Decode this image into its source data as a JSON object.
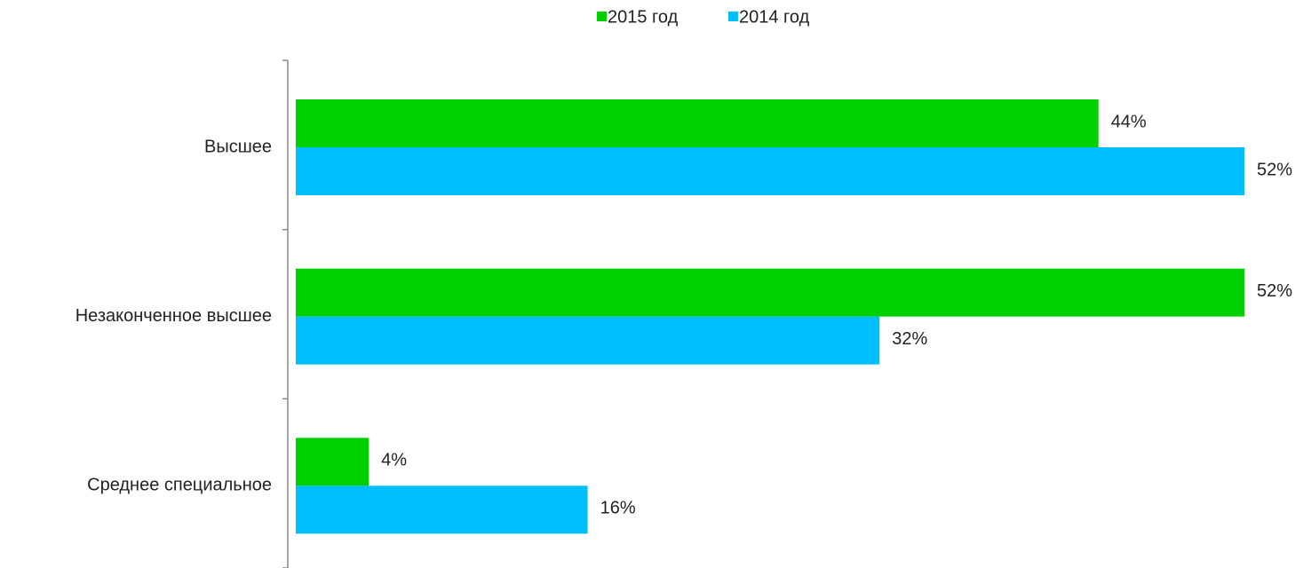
{
  "chart_data": {
    "type": "bar",
    "orientation": "horizontal",
    "categories": [
      "Высшее",
      "Незаконченное высшее",
      "Среднее специальное"
    ],
    "series": [
      {
        "name": "2015 год",
        "color": "#00d000",
        "values": [
          44,
          52,
          4
        ],
        "value_labels": [
          "44%",
          "52%",
          "4%"
        ]
      },
      {
        "name": "2014 год",
        "color": "#00bfff",
        "values": [
          52,
          32,
          16
        ],
        "value_labels": [
          "52%",
          "32%",
          "16%"
        ]
      }
    ],
    "legend": "top"
  }
}
